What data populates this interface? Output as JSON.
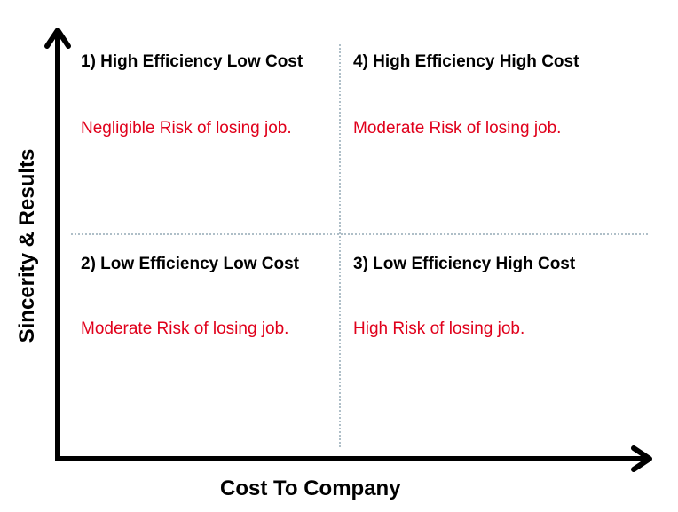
{
  "axes": {
    "y_label": "Sincerity & Results",
    "x_label": "Cost To Company"
  },
  "quadrants": [
    {
      "title": "1) High Efficiency Low Cost",
      "risk": "Negligible Risk of losing job."
    },
    {
      "title": "4) High Efficiency High Cost",
      "risk": "Moderate Risk of losing job."
    },
    {
      "title": "2) Low Efficiency Low Cost",
      "risk": "Moderate Risk of losing job."
    },
    {
      "title": "3) Low Efficiency High Cost",
      "risk": "High Risk of losing job."
    }
  ],
  "colors": {
    "risk_text": "#e0001b",
    "divider": "#5f7f90",
    "axis": "#000000"
  }
}
